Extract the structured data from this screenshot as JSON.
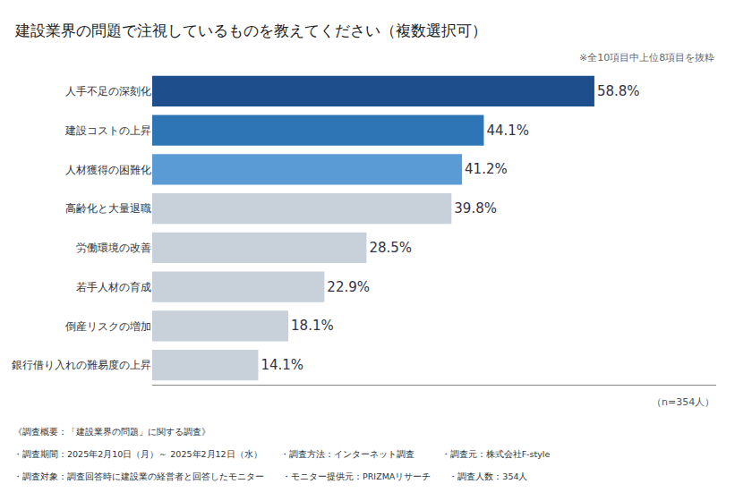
{
  "chart_data": {
    "type": "bar",
    "orientation": "horizontal",
    "title": "建設業界の問題で注視しているものを教えてください（複数選択可）",
    "subtitle": "※全10項目中上位8項目を抜粋",
    "categories": [
      "人手不足の深刻化",
      "建設コストの上昇",
      "人材獲得の困難化",
      "高齢化と大量退職",
      "労働環境の改善",
      "若手人材の育成",
      "倒産リスクの増加",
      "銀行借り入れの難易度の上昇"
    ],
    "values": [
      58.8,
      44.1,
      41.2,
      39.8,
      28.5,
      22.9,
      18.1,
      14.1
    ],
    "value_labels": [
      "58.8%",
      "44.1%",
      "41.2%",
      "39.8%",
      "28.5%",
      "22.9%",
      "18.1%",
      "14.1%"
    ],
    "data_labels": true,
    "colors": [
      "#1f4e8c",
      "#2e75b6",
      "#5b9bd5",
      "#c8d0da",
      "#c8d0da",
      "#c8d0da",
      "#c8d0da",
      "#c8d0da"
    ],
    "xlim": [
      0,
      75
    ],
    "grid": false,
    "tick_labels": "y",
    "annotations": [
      "（n=354人）",
      "《調査概要：「建設業界の問題」に関する調査》",
      "・調査期間：2025年2月10日（月）～ 2025年2月12日（水）　　・調査方法：インターネット調査　　　・調査元：株式会社F-style",
      "・調査対象：調査回答時に建設業の経営者と回答したモニター　　・モニター提供元：PRIZMAリサーチ　　・調査人数：354人"
    ]
  }
}
